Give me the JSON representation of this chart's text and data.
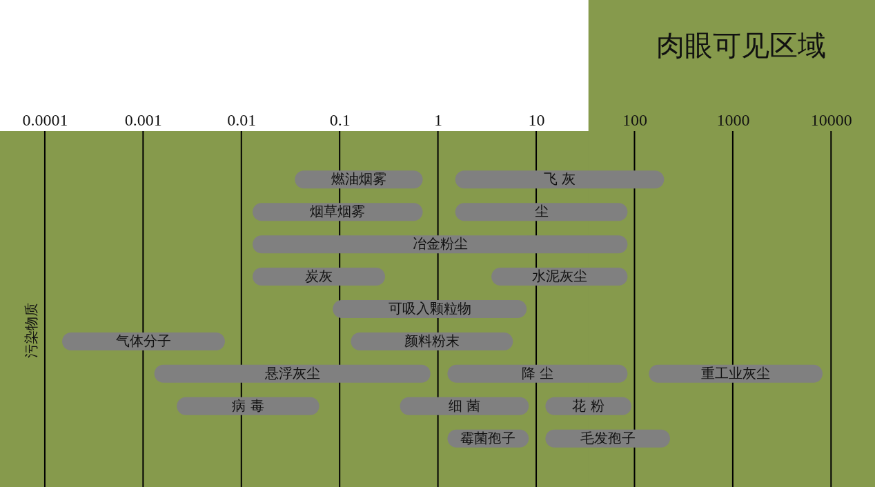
{
  "chart_data": {
    "type": "bar",
    "orientation": "horizontal",
    "log": "x",
    "ylabel": "污染物质",
    "categories": [
      null,
      null,
      null,
      null,
      null,
      null,
      null,
      null,
      null,
      null,
      null
    ],
    "xlim": [
      3.5e-05,
      28000
    ],
    "xticks": [
      0.0001,
      0.001,
      0.01,
      0.1,
      1,
      10,
      100,
      1000,
      10000
    ],
    "grid": "x",
    "series": [
      {
        "color": "#808080",
        "base": [
          null,
          0.035,
          0.013,
          0.013,
          0.013,
          0.085,
          0.00015,
          0.0013,
          0.0022,
          1.25,
          null
        ],
        "values": [
          null,
          0.665,
          0.687,
          84.987,
          0.277,
          7.915,
          0.00665,
          0.8387,
          0.0598,
          7.15,
          null
        ],
        "value_labels": [
          null,
          "燃油烟雾",
          "烟草烟雾",
          "冶金粉尘",
          "炭灰",
          "可吸入颗粒物",
          "气体分子",
          "悬浮灰尘",
          "病 毒",
          "霉菌孢子",
          null
        ]
      },
      {
        "color": "#808080",
        "base": [
          null,
          1.5,
          1.5,
          null,
          3.5,
          null,
          0.13,
          1.25,
          0.41,
          12.4,
          null
        ],
        "values": [
          null,
          198.5,
          83.5,
          null,
          81.5,
          null,
          5.67,
          83.75,
          7.99,
          217.6,
          null
        ],
        "value_labels": [
          null,
          "飞 灰",
          "尘",
          null,
          "水泥灰尘",
          null,
          "颜料粉末",
          "降 尘",
          "细 菌",
          "毛发孢子",
          null
        ]
      },
      {
        "color": "#808080",
        "base": [
          null,
          null,
          null,
          null,
          null,
          null,
          null,
          140,
          12.4,
          null,
          null
        ],
        "values": [
          null,
          null,
          null,
          null,
          null,
          null,
          null,
          8060,
          80.6,
          null,
          null
        ],
        "value_labels": [
          null,
          null,
          null,
          null,
          null,
          null,
          null,
          "重工业灰尘",
          "花 粉",
          null,
          null
        ]
      }
    ],
    "bands": [
      {
        "axis": "x",
        "from": 34,
        "to": 28000,
        "label": "肉眼可见区域",
        "color": "#869a4c"
      }
    ]
  }
}
